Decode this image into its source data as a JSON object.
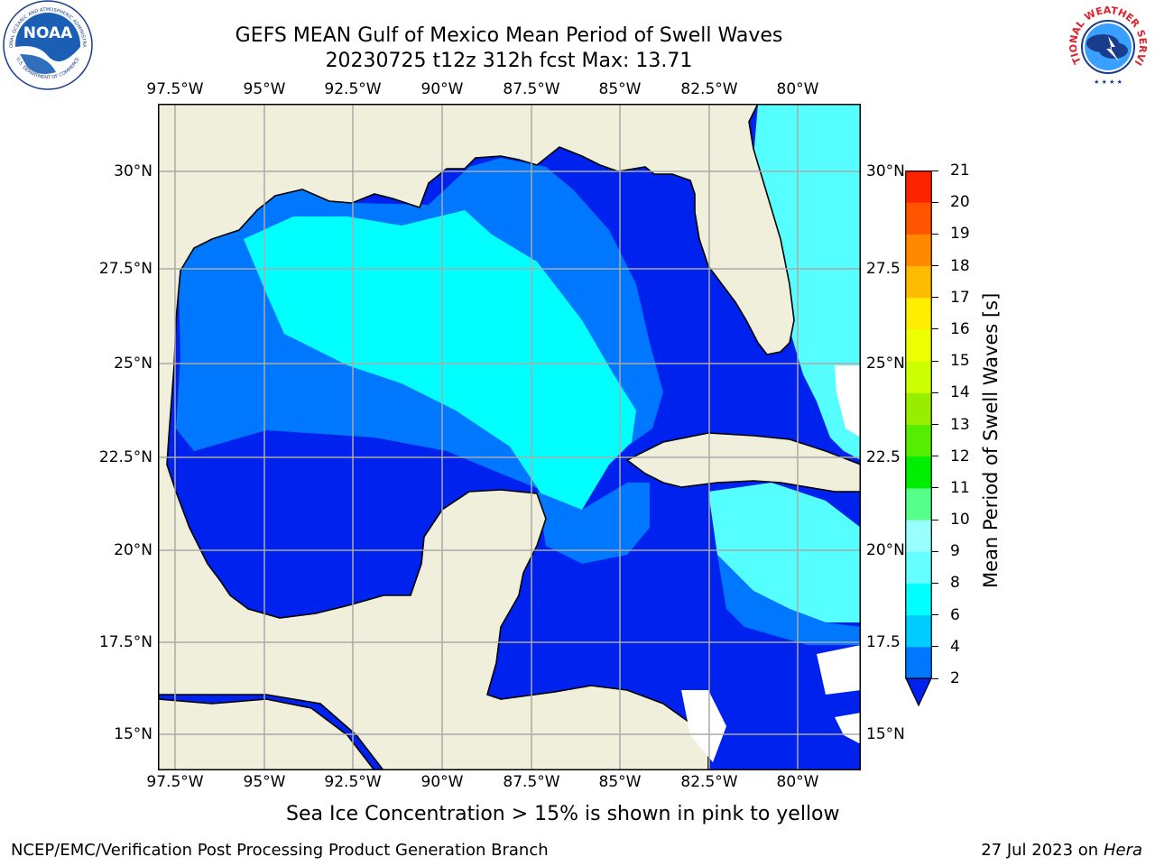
{
  "header": {
    "title_line1": "GEFS MEAN Gulf of Mexico Mean Period of Swell Waves",
    "title_line2": "20230725 t12z 312h fcst   Max: 13.71"
  },
  "logos": {
    "left": {
      "text": "NOAA",
      "ring_top": "NATIONAL OCEANIC AND ATMOSPHERIC ADMINISTRATION",
      "ring_bottom": "U.S. DEPARTMENT OF COMMERCE"
    },
    "right": {
      "ring_text": "NATIONAL WEATHER SERVICE"
    }
  },
  "axes": {
    "lon_labels": [
      "97.5°W",
      "95°W",
      "92.5°W",
      "90°W",
      "87.5°W",
      "85°W",
      "82.5°W",
      "80°W"
    ],
    "lat_labels_left": [
      "30°N",
      "27.5°N",
      "25°N",
      "22.5°N",
      "20°N",
      "17.5°N",
      "15°N"
    ],
    "lat_labels_right": [
      "30°N",
      "27.5",
      "25°N",
      "22.5",
      "20°N",
      "17.5",
      "15°N"
    ]
  },
  "colorbar": {
    "label": "Mean Period of Swell Waves [s]",
    "ticks": [
      "2",
      "4",
      "6",
      "8",
      "9",
      "10",
      "11",
      "12",
      "13",
      "14",
      "15",
      "16",
      "17",
      "18",
      "19",
      "20",
      "21"
    ],
    "colors": [
      "#0077ff",
      "#00ccff",
      "#00ffff",
      "#66ffff",
      "#99ffff",
      "#55ff88",
      "#00ee00",
      "#55ee00",
      "#99ee00",
      "#ccff00",
      "#eeff00",
      "#ffee00",
      "#ffbb00",
      "#ff8800",
      "#ff5500",
      "#ff2200"
    ],
    "under_color": "#0022ee"
  },
  "map_colors": {
    "land": "#efefdc",
    "deep": "#0022ee",
    "mid": "#0077ff",
    "cyan": "#00ffff",
    "light": "#55ffff",
    "green": "#00ee00",
    "yellowgreen": "#aaee00"
  },
  "note": "Sea Ice Concentration > 15% is shown in pink to yellow",
  "footer": {
    "left": "NCEP/EMC/Verification Post Processing Product Generation Branch",
    "right_date": "27 Jul 2023 on ",
    "right_host": "Hera"
  }
}
